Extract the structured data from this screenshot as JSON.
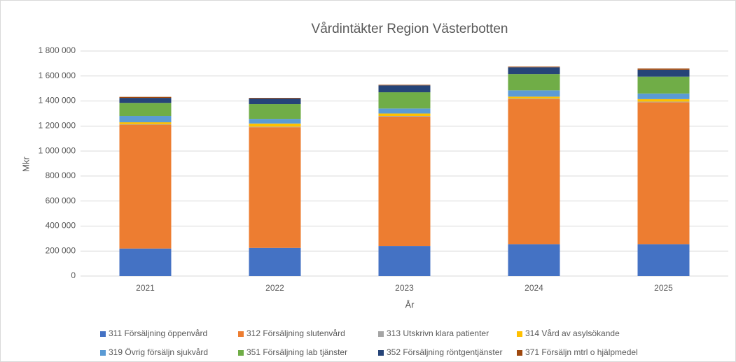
{
  "chart_data": {
    "type": "bar",
    "stacked": true,
    "title": "Vårdintäkter Region Västerbotten",
    "x_label": "År",
    "y_label": "Mkr",
    "categories": [
      "2021",
      "2022",
      "2023",
      "2024",
      "2025"
    ],
    "series": [
      {
        "name": "311 Försäljning öppenvård",
        "color": "#4472c4",
        "values": [
          220000,
          225000,
          240000,
          255000,
          255000
        ]
      },
      {
        "name": "312 Försäljning slutenvård",
        "color": "#ed7d31",
        "values": [
          990000,
          965000,
          1035000,
          1160000,
          1135000
        ]
      },
      {
        "name": "313 Utskrivn klara patienter",
        "color": "#a5a5a5",
        "values": [
          5000,
          5000,
          5000,
          5000,
          5000
        ]
      },
      {
        "name": "314 Vård av asylsökande",
        "color": "#ffc000",
        "values": [
          15000,
          25000,
          20000,
          15000,
          20000
        ]
      },
      {
        "name": "319 Övrig försäljn sjukvård",
        "color": "#5b9bd5",
        "values": [
          50000,
          37000,
          40000,
          50000,
          45000
        ]
      },
      {
        "name": "351 Försäljning lab tjänster",
        "color": "#70ad47",
        "values": [
          105000,
          118000,
          130000,
          130000,
          135000
        ]
      },
      {
        "name": "352 Försäljning röntgentjänster",
        "color": "#264478",
        "values": [
          40000,
          45000,
          55000,
          55000,
          55000
        ]
      },
      {
        "name": "371 Försäljn mtrl o hjälpmedel",
        "color": "#9e480e",
        "values": [
          8000,
          5000,
          5000,
          5000,
          10000
        ]
      }
    ],
    "ylim": [
      0,
      1800000
    ],
    "yticks": [
      0,
      {
        "value": 200000,
        "label": "200 000"
      },
      {
        "value": 400000,
        "label": "400 000"
      },
      {
        "value": 600000,
        "label": "600 000"
      },
      {
        "value": 800000,
        "label": "800 000"
      },
      {
        "value": 1000000,
        "label": "1 000 000"
      },
      {
        "value": 1200000,
        "label": "1 200 000"
      },
      {
        "value": 1400000,
        "label": "1 400 000"
      },
      {
        "value": 1600000,
        "label": "1 600 000"
      },
      {
        "value": 1800000,
        "label": "1 800 000"
      }
    ],
    "grid": true,
    "legend": "bottom"
  }
}
